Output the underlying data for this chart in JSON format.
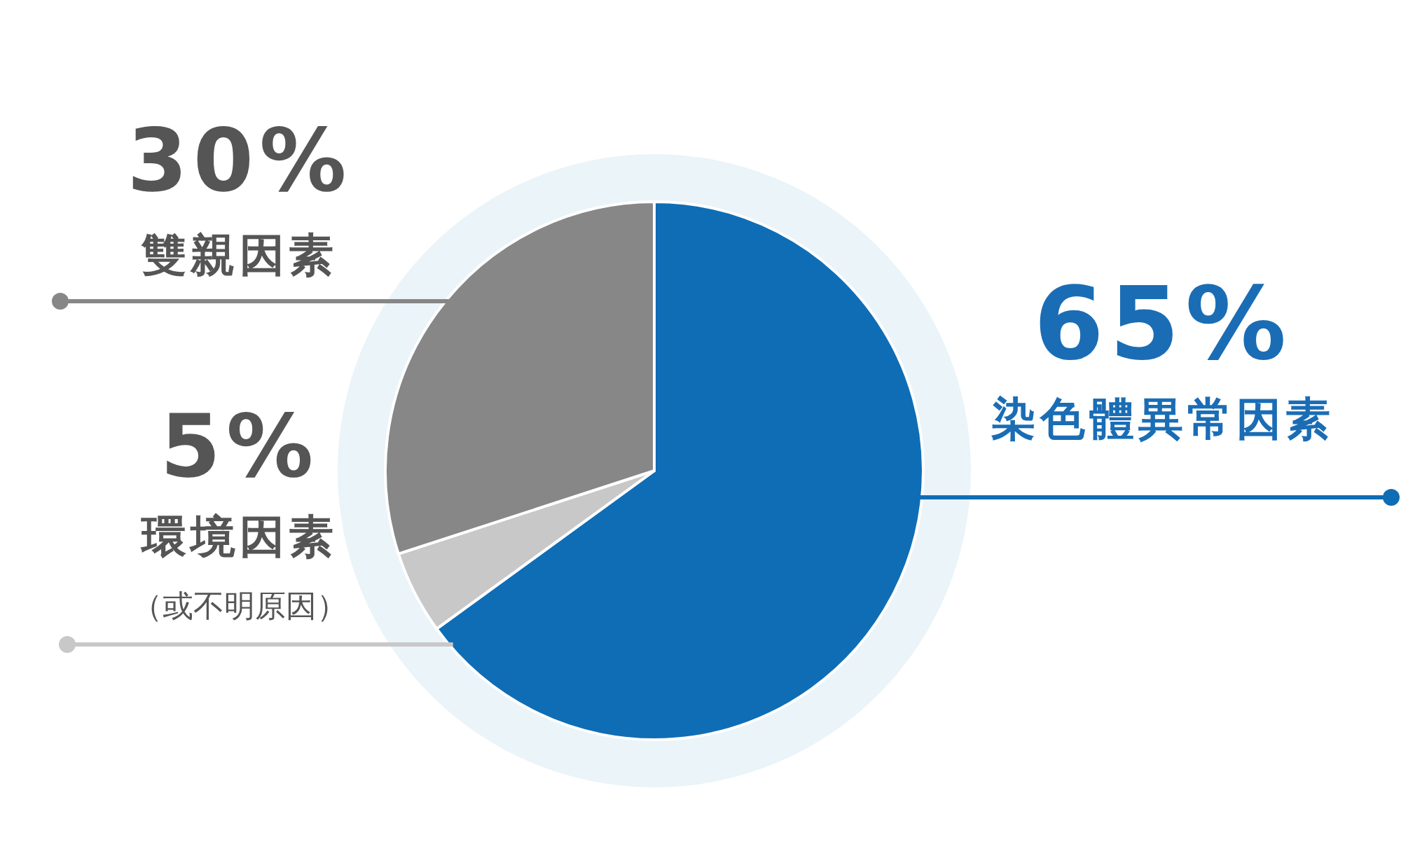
{
  "chart_data": {
    "type": "pie",
    "categories": [
      "染色體異常因素",
      "環境因素",
      "雙親因素"
    ],
    "values": [
      65,
      5,
      30
    ],
    "colors": [
      "#0f6db5",
      "#c8c8c8",
      "#878787"
    ],
    "value_labels": [
      "65%",
      "5%",
      "30%"
    ],
    "annotations": [
      "（或不明原因）"
    ]
  }
}
